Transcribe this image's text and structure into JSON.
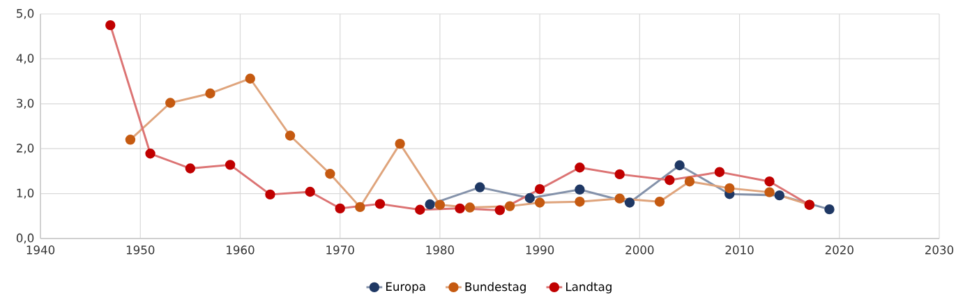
{
  "chart_data": {
    "type": "line",
    "xlim": [
      1940,
      2030
    ],
    "ylim": [
      0,
      5
    ],
    "xticks": [
      1940,
      1950,
      1960,
      1970,
      1980,
      1990,
      2000,
      2010,
      2020,
      2030
    ],
    "yticks": [
      {
        "value": 0,
        "label": "0,0"
      },
      {
        "value": 1,
        "label": "1,0"
      },
      {
        "value": 2,
        "label": "2,0"
      },
      {
        "value": 3,
        "label": "3,0"
      },
      {
        "value": 4,
        "label": "4,0"
      },
      {
        "value": 5,
        "label": "5,0"
      }
    ],
    "grid": true,
    "legend": "bottom",
    "marker": "circle",
    "line_style": "solid",
    "series": [
      {
        "name": "Europa",
        "color": "#1f3864",
        "x": [
          1979,
          1984,
          1989,
          1994,
          1999,
          2004,
          2009,
          2014,
          2019
        ],
        "values": [
          0.76,
          1.14,
          0.9,
          1.09,
          0.8,
          1.63,
          0.99,
          0.96,
          0.65
        ]
      },
      {
        "name": "Bundestag",
        "color": "#c55a11",
        "x": [
          1949,
          1953,
          1957,
          1961,
          1965,
          1969,
          1972,
          1976,
          1980,
          1983,
          1987,
          1990,
          1994,
          1998,
          2002,
          2005,
          2009,
          2013,
          2017
        ],
        "values": [
          2.2,
          3.02,
          3.23,
          3.56,
          2.29,
          1.44,
          0.7,
          2.11,
          0.75,
          0.69,
          0.72,
          0.8,
          0.82,
          0.89,
          0.82,
          1.27,
          1.12,
          1.03,
          0.75
        ]
      },
      {
        "name": "Landtag",
        "color": "#c00000",
        "x": [
          1947,
          1951,
          1955,
          1959,
          1963,
          1967,
          1970,
          1974,
          1978,
          1982,
          1986,
          1990,
          1994,
          1998,
          2003,
          2008,
          2013,
          2017
        ],
        "values": [
          4.75,
          1.89,
          1.56,
          1.64,
          0.98,
          1.04,
          0.67,
          0.77,
          0.64,
          0.67,
          0.63,
          1.1,
          1.58,
          1.43,
          1.3,
          1.48,
          1.27,
          0.75
        ]
      }
    ]
  }
}
